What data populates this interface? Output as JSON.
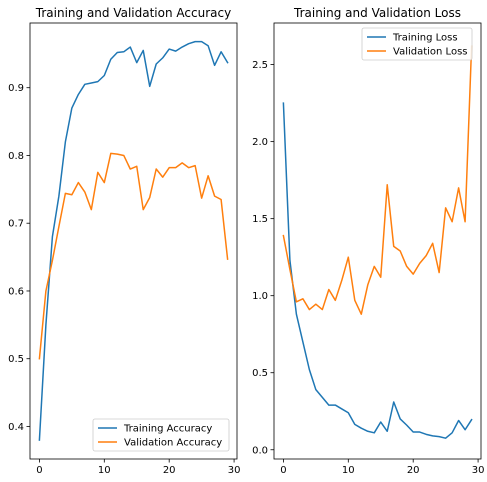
{
  "chart_data": [
    {
      "type": "line",
      "title": "Training and Validation Accuracy",
      "xlabel": "",
      "ylabel": "",
      "xlim": [
        -1.45,
        30.45
      ],
      "ylim": [
        0.352,
        0.9955
      ],
      "xticks": [
        0,
        10,
        20,
        30
      ],
      "xtick_labels": [
        "0",
        "10",
        "20",
        "30"
      ],
      "yticks": [
        0.4,
        0.5,
        0.6,
        0.7,
        0.8,
        0.9
      ],
      "ytick_labels": [
        "0.4",
        "0.5",
        "0.6",
        "0.7",
        "0.8",
        "0.9"
      ],
      "grid": false,
      "legend_position": "lower right",
      "series": [
        {
          "name": "Training Accuracy",
          "color": "#1f77b4",
          "x": [
            0,
            1,
            2,
            3,
            4,
            5,
            6,
            7,
            8,
            9,
            10,
            11,
            12,
            13,
            14,
            15,
            16,
            17,
            18,
            19,
            20,
            21,
            22,
            23,
            24,
            25,
            26,
            27,
            28,
            29
          ],
          "values": [
            0.38,
            0.55,
            0.68,
            0.74,
            0.82,
            0.87,
            0.89,
            0.905,
            0.907,
            0.909,
            0.918,
            0.942,
            0.952,
            0.953,
            0.96,
            0.937,
            0.955,
            0.902,
            0.935,
            0.944,
            0.957,
            0.954,
            0.96,
            0.965,
            0.968,
            0.968,
            0.962,
            0.933,
            0.953,
            0.937
          ]
        },
        {
          "name": "Validation Accuracy",
          "color": "#ff7f0e",
          "x": [
            0,
            1,
            2,
            3,
            4,
            5,
            6,
            7,
            8,
            9,
            10,
            11,
            12,
            13,
            14,
            15,
            16,
            17,
            18,
            19,
            20,
            21,
            22,
            23,
            24,
            25,
            26,
            27,
            28,
            29
          ],
          "values": [
            0.5,
            0.6,
            0.645,
            0.695,
            0.744,
            0.742,
            0.76,
            0.746,
            0.72,
            0.775,
            0.76,
            0.803,
            0.802,
            0.8,
            0.78,
            0.784,
            0.72,
            0.738,
            0.78,
            0.768,
            0.782,
            0.782,
            0.789,
            0.782,
            0.785,
            0.737,
            0.77,
            0.74,
            0.735,
            0.647
          ]
        }
      ]
    },
    {
      "type": "line",
      "title": "Training and Validation Loss",
      "xlabel": "",
      "ylabel": "",
      "xlim": [
        -1.45,
        30.45
      ],
      "ylim": [
        -0.06,
        2.77
      ],
      "xticks": [
        0,
        10,
        20,
        30
      ],
      "xtick_labels": [
        "0",
        "10",
        "20",
        "30"
      ],
      "yticks": [
        0.0,
        0.5,
        1.0,
        1.5,
        2.0,
        2.5
      ],
      "ytick_labels": [
        "0.0",
        "0.5",
        "1.0",
        "1.5",
        "2.0",
        "2.5"
      ],
      "grid": false,
      "legend_position": "upper right",
      "series": [
        {
          "name": "Training Loss",
          "color": "#1f77b4",
          "x": [
            0,
            1,
            2,
            3,
            4,
            5,
            6,
            7,
            8,
            9,
            10,
            11,
            12,
            13,
            14,
            15,
            16,
            17,
            18,
            19,
            20,
            21,
            22,
            23,
            24,
            25,
            26,
            27,
            28,
            29
          ],
          "values": [
            2.25,
            1.23,
            0.88,
            0.7,
            0.52,
            0.39,
            0.34,
            0.29,
            0.29,
            0.265,
            0.24,
            0.165,
            0.14,
            0.12,
            0.11,
            0.18,
            0.12,
            0.31,
            0.2,
            0.16,
            0.115,
            0.115,
            0.1,
            0.09,
            0.085,
            0.075,
            0.11,
            0.19,
            0.13,
            0.195
          ]
        },
        {
          "name": "Validation Loss",
          "color": "#ff7f0e",
          "x": [
            0,
            1,
            2,
            3,
            4,
            5,
            6,
            7,
            8,
            9,
            10,
            11,
            12,
            13,
            14,
            15,
            16,
            17,
            18,
            19,
            20,
            21,
            22,
            23,
            24,
            25,
            26,
            27,
            28,
            29
          ],
          "values": [
            1.39,
            1.17,
            0.96,
            0.98,
            0.91,
            0.945,
            0.91,
            1.04,
            0.97,
            1.1,
            1.25,
            0.97,
            0.88,
            1.07,
            1.19,
            1.12,
            1.72,
            1.32,
            1.29,
            1.19,
            1.14,
            1.21,
            1.26,
            1.34,
            1.15,
            1.57,
            1.48,
            1.7,
            1.48,
            2.62
          ]
        }
      ]
    }
  ]
}
